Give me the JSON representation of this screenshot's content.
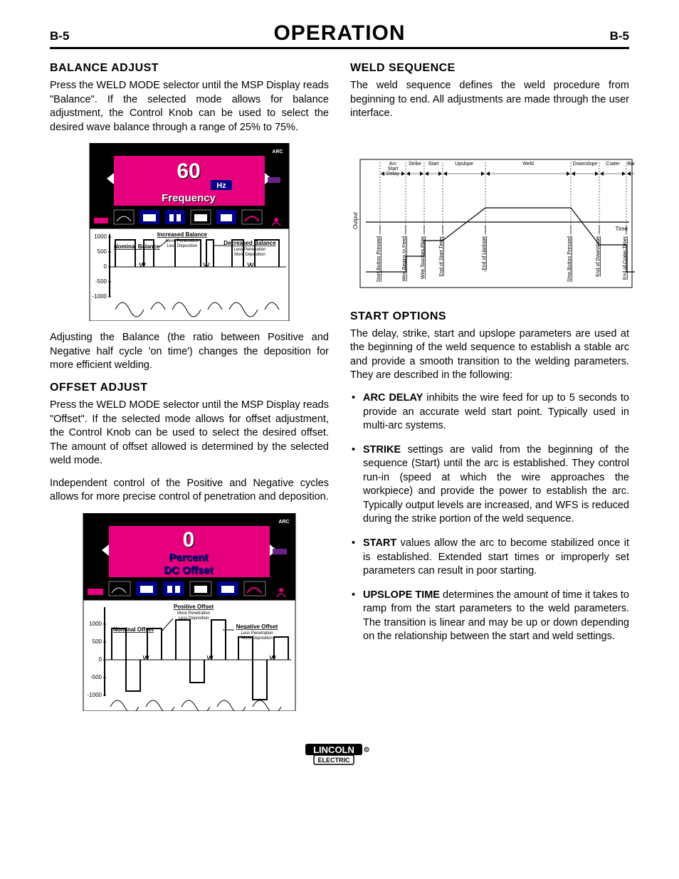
{
  "header": {
    "page_left": "B-5",
    "title": "OPERATION",
    "page_right": "B-5"
  },
  "left_col": {
    "balance": {
      "heading": "BALANCE ADJUST",
      "p1": "Press the WELD MODE selector until the MSP Display reads \"Balance\". If the selected mode allows for balance adjustment, the Control Knob can be used to select the desired wave balance through a range of 25% to 75%.",
      "p2": "Adjusting the Balance (the ratio between Positive and Negative half cycle 'on time') changes the deposition for more efficient welding."
    },
    "offset": {
      "heading": "OFFSET ADJUST",
      "p1": "Press the WELD MODE selector until the MSP Display reads \"Offset\". If the selected mode allows for offset adjustment, the Control Knob can be used to select the desired offset. The amount of offset allowed is determined by the selected weld mode.",
      "p2": "Independent control of the Positive and Negative cycles allows for more precise control of penetration and deposition."
    },
    "fig1": {
      "type": "lcd+waveform",
      "lcd": {
        "value": "60",
        "unit": "Hz",
        "label": "Frequency",
        "arc_label": "ARC",
        "bg": "#000000",
        "accent": "#e6007e",
        "text_color": "#ffffff"
      },
      "wave": {
        "y_ticks": [
          "1000",
          "500",
          "0",
          "-500",
          "-1000"
        ],
        "labels": {
          "nominal": "Nominal Balance",
          "inc": "Increased Balance",
          "inc_sub": "More Penetration\nLess Deposition",
          "dec": "Decreased Balance",
          "dec_sub": "Less Penetration\nMore Deposition"
        }
      }
    },
    "fig2": {
      "type": "lcd+waveform",
      "lcd": {
        "value": "0",
        "unit": "Percent",
        "label": "DC Offset",
        "arc_label": "ARC",
        "bg": "#000000",
        "accent": "#e6007e",
        "text_color": "#ffffff"
      },
      "wave": {
        "y_ticks": [
          "1000",
          "500",
          "0",
          "-500",
          "-1000"
        ],
        "labels": {
          "nominal": "Nominal Offset",
          "pos": "Positive Offset",
          "pos_sub": "More Penetration\nLess Deposition",
          "neg": "Negative Offset",
          "neg_sub": "Less Penetration\nMore Deposition"
        }
      }
    }
  },
  "right_col": {
    "weld_seq": {
      "heading": "WELD SEQUENCE",
      "p1": "The weld sequence defines the weld procedure from beginning to end. All adjustments are made through the user interface."
    },
    "seq_diagram": {
      "type": "timing-diagram",
      "y_label": "Output",
      "x_label": "Time",
      "top_phases": [
        "Arc Start Delay",
        "Strike",
        "Start",
        "Upslope",
        "Weld",
        "Downslope",
        "Crater",
        "Burnback"
      ],
      "bottom_events": [
        "Start Button Pressed",
        "Wire Begins to Feed",
        "Wire Touches Plate",
        "End of Start Timer",
        "End of Upslope",
        "Stop Button Pressed",
        "End of Downslope",
        "End of Crater Timer",
        "End of Burnback"
      ],
      "phase_edges_x": [
        42,
        78,
        104,
        130,
        190,
        310,
        350,
        388,
        420
      ],
      "output_levels": {
        "off": 162,
        "strike": 140,
        "start": 118,
        "weld": 72,
        "crater": 124
      }
    },
    "start_opts": {
      "heading": "START OPTIONS",
      "intro": "The delay, strike, start and upslope parameters are used at the beginning of the weld sequence to establish a stable arc and provide a smooth transition to the welding parameters. They are described in the following:",
      "items": [
        {
          "term": "ARC DELAY",
          "text": " inhibits the wire feed for up to 5 seconds to provide an accurate weld start point. Typically used in multi-arc systems."
        },
        {
          "term": "STRIKE",
          "text": " settings are valid from the beginning of the sequence (Start) until the arc is established. They control run-in (speed at which the wire approaches the workpiece) and provide the power to establish the arc. Typically output levels are increased, and WFS is reduced during the strike portion of the weld sequence."
        },
        {
          "term": "START",
          "text": " values allow the arc to become stabilized once it is established. Extended start times or improperly set parameters can result in poor starting."
        },
        {
          "term": "UPSLOPE TIME",
          "text": " determines the amount of time it takes to ramp from the start parameters to the weld parameters. The transition is linear and may be up or down depending on the relationship between the start and weld settings."
        }
      ]
    }
  },
  "logo": {
    "top": "LINCOLN",
    "bottom": "ELECTRIC"
  }
}
